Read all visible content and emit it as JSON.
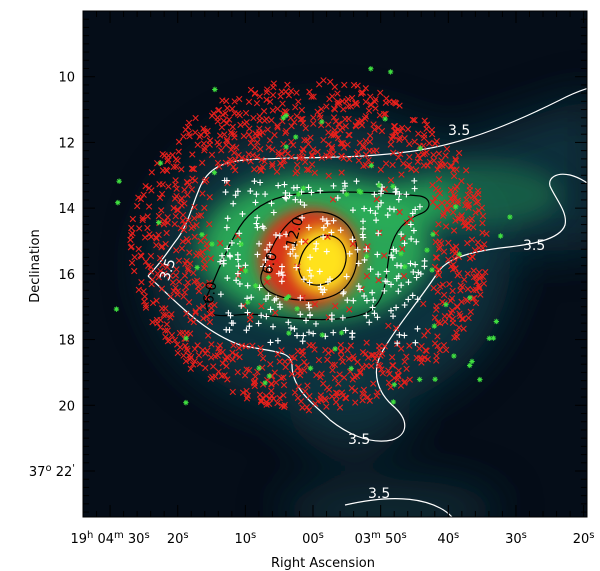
{
  "chart_data": {
    "type": "scatter",
    "title": "",
    "xlabel": "Right Ascension",
    "ylabel": "Declination",
    "colors": {
      "background": "#050d18",
      "map_low": "#0f3a45",
      "map_mid": "#2bb35a",
      "map_high": "#e22e16",
      "map_peak": "#ffe21a",
      "cross_red": "#e8201c",
      "plus_white": "#ffffff",
      "star_green": "#40e040",
      "contour_white": "#ffffff",
      "contour_black": "#000000"
    },
    "x_ticks": [
      {
        "value": 30.0,
        "main": "19",
        "sup1": "h",
        "mid": " 04",
        "sup2": "m",
        "tail": " 30",
        "sup3": "s"
      },
      {
        "value": 20.0,
        "main": "20",
        "sup1": "s",
        "mid": "",
        "sup2": "",
        "tail": "",
        "sup3": ""
      },
      {
        "value": 10.0,
        "main": "10",
        "sup1": "s",
        "mid": "",
        "sup2": "",
        "tail": "",
        "sup3": ""
      },
      {
        "value": 0.0,
        "main": "00",
        "sup1": "s",
        "mid": "",
        "sup2": "",
        "tail": "",
        "sup3": ""
      },
      {
        "value": -10.0,
        "main": "03",
        "sup1": "m",
        "mid": " 50",
        "sup2": "s",
        "tail": "",
        "sup3": ""
      },
      {
        "value": -20.0,
        "main": "40",
        "sup1": "s",
        "mid": "",
        "sup2": "",
        "tail": "",
        "sup3": ""
      },
      {
        "value": -30.0,
        "main": "30",
        "sup1": "s",
        "mid": "",
        "sup2": "",
        "tail": "",
        "sup3": ""
      },
      {
        "value": -40.0,
        "main": "20",
        "sup1": "s",
        "mid": "",
        "sup2": "",
        "tail": "",
        "sup3": ""
      }
    ],
    "y_ticks": [
      {
        "value": 10,
        "label": "10"
      },
      {
        "value": 12,
        "label": "12"
      },
      {
        "value": 14,
        "label": "14"
      },
      {
        "value": 16,
        "label": "16"
      },
      {
        "value": 18,
        "label": "18"
      },
      {
        "value": 20,
        "label": "20"
      }
    ],
    "y_tick_special": {
      "value": 22,
      "deg": "37",
      "deg_sup": "o",
      "min": " 22",
      "min_sup": "'"
    },
    "xlim": [
      34.0,
      -40.5
    ],
    "ylim": [
      23.4,
      8.0
    ],
    "contour_labels": [
      "3.5",
      "3.5",
      "3.5",
      "3.5",
      "3.5",
      "6.0",
      "6.0",
      "12.0"
    ],
    "peak": {
      "x": -1.5,
      "y": 15.6
    },
    "sources": {
      "red_x_count": 1100,
      "white_plus_count": 260,
      "green_star_count": 70
    }
  }
}
